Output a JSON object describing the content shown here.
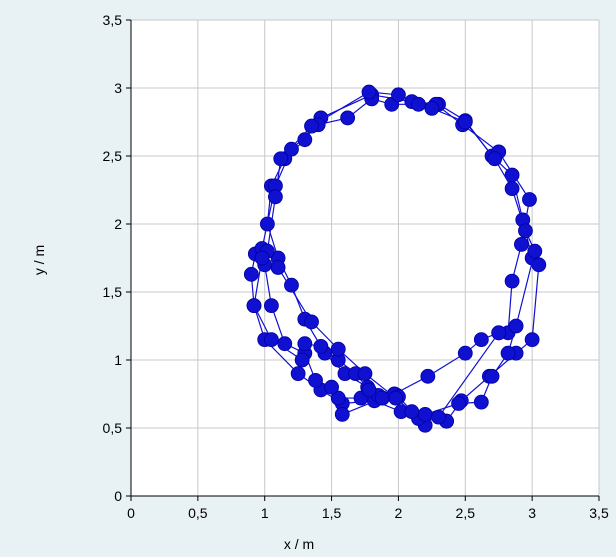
{
  "chart_data": {
    "type": "scatter",
    "mode": "lines+markers",
    "xlabel": "x / m",
    "ylabel": "y / m",
    "xlim": [
      0,
      3.5
    ],
    "ylim": [
      0,
      3.5
    ],
    "grid": true,
    "x_ticks": [
      "0",
      "0,5",
      "1",
      "1,5",
      "2",
      "2,5",
      "3",
      "3,5"
    ],
    "y_ticks": [
      "0",
      "0,5",
      "1",
      "1,5",
      "2",
      "2,5",
      "3",
      "3,5"
    ],
    "colors": {
      "series": "#1010d0",
      "background": "#e8f1f3",
      "plot_area": "#ffffff",
      "grid": "#c8c8c8"
    },
    "series": [
      {
        "points": [
          [
            2.2,
            0.52
          ],
          [
            1.99,
            0.74
          ],
          [
            1.77,
            0.8
          ],
          [
            1.6,
            0.9
          ],
          [
            1.45,
            1.05
          ],
          [
            1.3,
            1.3
          ],
          [
            1.2,
            1.55
          ],
          [
            1.1,
            1.75
          ],
          [
            1.02,
            2.0
          ],
          [
            1.05,
            2.28
          ],
          [
            1.15,
            2.48
          ],
          [
            1.3,
            2.62
          ],
          [
            1.42,
            2.78
          ],
          [
            1.8,
            2.95
          ],
          [
            2.1,
            2.9
          ],
          [
            2.3,
            2.88
          ],
          [
            2.5,
            2.76
          ],
          [
            2.7,
            2.5
          ],
          [
            2.85,
            2.36
          ],
          [
            2.93,
            2.03
          ],
          [
            3.0,
            1.75
          ],
          [
            3.05,
            1.7
          ],
          [
            3.0,
            1.15
          ],
          [
            2.88,
            1.05
          ],
          [
            2.68,
            0.88
          ],
          [
            2.47,
            0.7
          ],
          [
            2.36,
            0.55
          ]
        ]
      },
      {
        "points": [
          [
            2.36,
            0.55
          ],
          [
            2.15,
            0.57
          ],
          [
            2.02,
            0.62
          ],
          [
            1.82,
            0.7
          ],
          [
            1.58,
            0.68
          ],
          [
            1.42,
            0.78
          ],
          [
            1.25,
            0.9
          ],
          [
            1.0,
            1.15
          ],
          [
            0.92,
            1.4
          ],
          [
            0.9,
            1.63
          ],
          [
            0.93,
            1.78
          ],
          [
            0.98,
            1.82
          ],
          [
            1.08,
            2.28
          ],
          [
            1.2,
            2.55
          ],
          [
            1.4,
            2.73
          ],
          [
            1.62,
            2.78
          ],
          [
            1.8,
            2.92
          ],
          [
            1.95,
            2.88
          ],
          [
            2.15,
            2.88
          ],
          [
            2.28,
            2.88
          ],
          [
            2.48,
            2.73
          ],
          [
            2.75,
            2.53
          ],
          [
            2.98,
            2.18
          ],
          [
            2.92,
            1.85
          ],
          [
            2.85,
            1.58
          ],
          [
            2.82,
            1.2
          ],
          [
            2.75,
            1.2
          ],
          [
            2.62,
            1.15
          ],
          [
            2.5,
            1.05
          ],
          [
            2.22,
            0.88
          ],
          [
            1.97,
            0.75
          ]
        ]
      },
      {
        "points": [
          [
            1.97,
            0.75
          ],
          [
            1.85,
            0.74
          ],
          [
            1.72,
            0.72
          ],
          [
            1.55,
            0.72
          ],
          [
            1.5,
            0.8
          ],
          [
            1.38,
            0.85
          ],
          [
            1.3,
            1.05
          ],
          [
            1.15,
            1.12
          ],
          [
            1.05,
            1.4
          ],
          [
            1.0,
            1.7
          ],
          [
            1.02,
            1.8
          ],
          [
            1.08,
            2.2
          ],
          [
            1.12,
            2.48
          ],
          [
            1.35,
            2.72
          ],
          [
            1.78,
            2.97
          ],
          [
            2.0,
            2.95
          ],
          [
            2.25,
            2.85
          ],
          [
            2.5,
            2.75
          ],
          [
            2.72,
            2.48
          ],
          [
            2.85,
            2.26
          ],
          [
            2.95,
            1.95
          ],
          [
            3.02,
            1.8
          ],
          [
            2.88,
            1.25
          ],
          [
            2.82,
            1.05
          ],
          [
            2.7,
            0.88
          ],
          [
            2.62,
            0.69
          ],
          [
            2.45,
            0.68
          ],
          [
            2.2,
            0.6
          ],
          [
            1.88,
            0.72
          ],
          [
            1.58,
            0.6
          ]
        ]
      },
      {
        "points": [
          [
            2.0,
            0.73
          ],
          [
            1.78,
            0.78
          ],
          [
            1.68,
            0.9
          ],
          [
            1.55,
            1.0
          ],
          [
            1.42,
            1.1
          ],
          [
            1.3,
            1.12
          ],
          [
            1.28,
            1.0
          ],
          [
            1.05,
            1.15
          ],
          [
            0.92,
            1.4
          ],
          [
            0.98,
            1.75
          ],
          [
            1.1,
            1.68
          ],
          [
            1.35,
            1.28
          ],
          [
            1.55,
            1.08
          ],
          [
            1.75,
            0.9
          ],
          [
            1.98,
            0.72
          ],
          [
            2.1,
            0.62
          ],
          [
            2.3,
            0.58
          ],
          [
            2.75,
            1.2
          ]
        ]
      }
    ]
  }
}
